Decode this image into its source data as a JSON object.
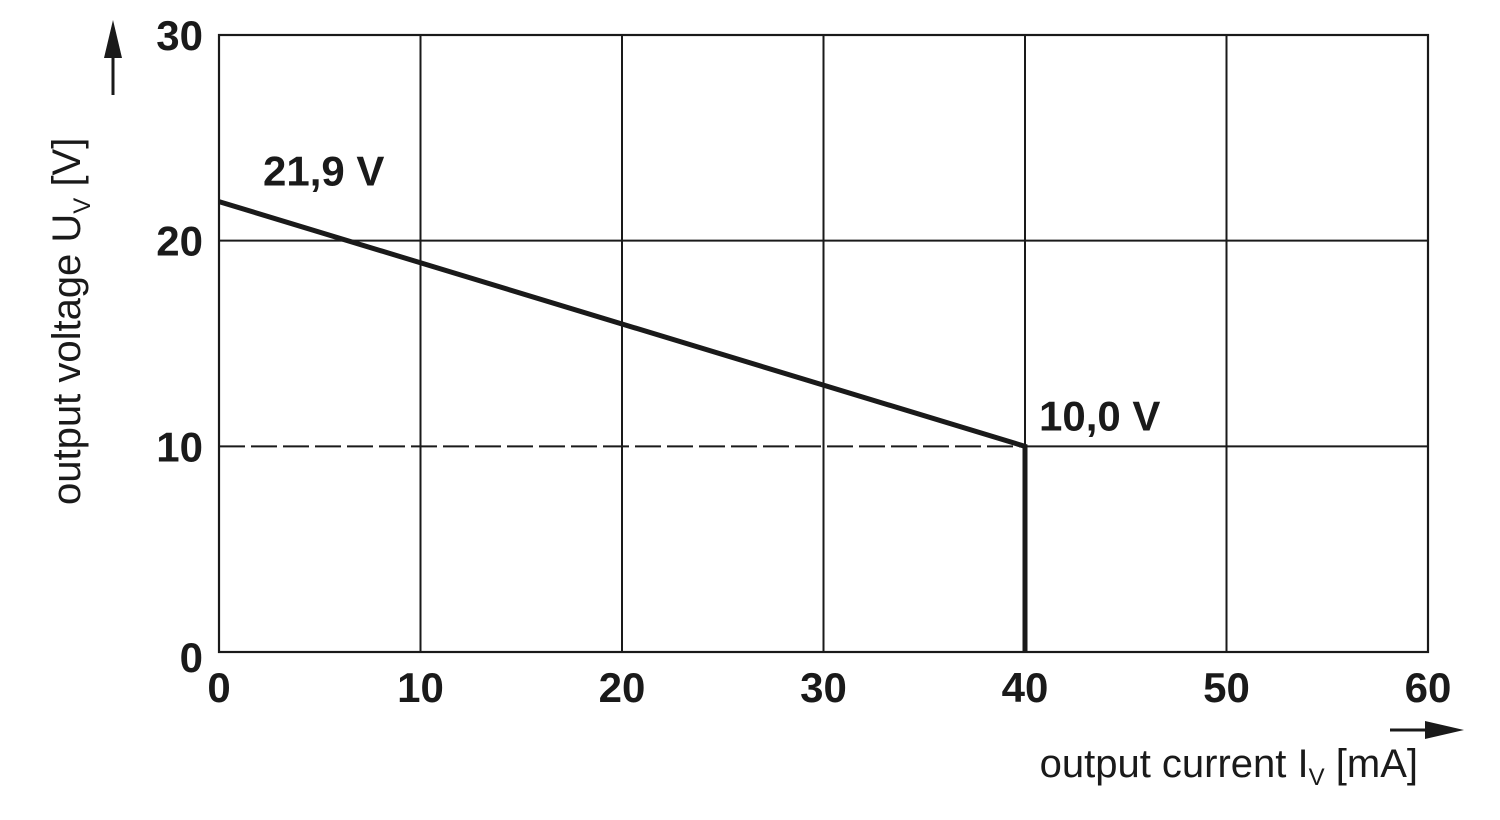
{
  "chart_data": {
    "type": "line",
    "xlabel": {
      "main": "output current I",
      "sub": "V",
      "unit": " [mA]"
    },
    "ylabel": {
      "main": "output voltage U",
      "sub": "V",
      "unit": " [V]"
    },
    "xlim": [
      0,
      60
    ],
    "ylim": [
      0,
      30
    ],
    "x_ticks": [
      0,
      10,
      20,
      30,
      40,
      50,
      60
    ],
    "y_ticks": [
      0,
      10,
      20,
      30
    ],
    "x_tick_labels": [
      "0",
      "10",
      "20",
      "30",
      "40",
      "50",
      "60"
    ],
    "y_tick_labels": [
      "0",
      "10",
      "20",
      "30"
    ],
    "grid": true,
    "series": [
      {
        "points": [
          [
            0,
            21.9
          ],
          [
            40,
            10.0
          ],
          [
            40,
            0
          ]
        ]
      }
    ],
    "reference_line": {
      "style": "dashed",
      "from": [
        0,
        10.0
      ],
      "to": [
        40,
        10.0
      ]
    },
    "annotations": [
      {
        "text": "21,9 V",
        "x": 0,
        "y": 21.9
      },
      {
        "text": "10,0 V",
        "x": 40,
        "y": 10.0
      }
    ],
    "colors": {
      "line": "#1a1a1a",
      "grid": "#1a1a1a",
      "background": "#ffffff"
    }
  }
}
